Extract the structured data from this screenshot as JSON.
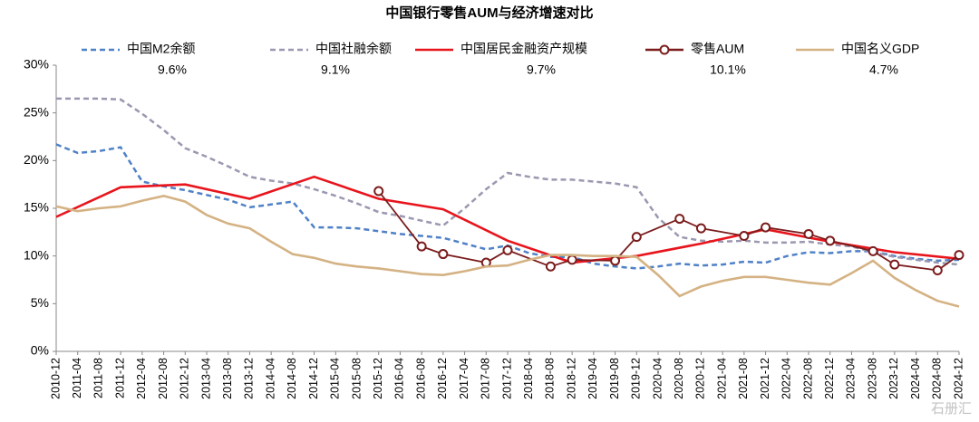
{
  "chart_data": {
    "type": "line",
    "title": "中国银行零售AUM与经济增速对比",
    "watermark": "石册汇",
    "categories": [
      "2010-12",
      "2011-04",
      "2011-08",
      "2011-12",
      "2012-04",
      "2012-08",
      "2012-12",
      "2013-04",
      "2013-08",
      "2013-12",
      "2014-04",
      "2014-08",
      "2014-12",
      "2015-04",
      "2015-08",
      "2015-12",
      "2016-04",
      "2016-08",
      "2016-12",
      "2017-04",
      "2017-08",
      "2017-12",
      "2018-04",
      "2018-08",
      "2018-12",
      "2019-04",
      "2019-08",
      "2019-12",
      "2020-04",
      "2020-08",
      "2020-12",
      "2021-04",
      "2021-08",
      "2021-12",
      "2022-04",
      "2022-08",
      "2022-12",
      "2023-04",
      "2023-08",
      "2023-12",
      "2024-04",
      "2024-08",
      "2024-12"
    ],
    "ylim": [
      0,
      30
    ],
    "yticks": [
      {
        "value": 0,
        "label": "0%"
      },
      {
        "value": 5,
        "label": "5%"
      },
      {
        "value": 10,
        "label": "10%"
      },
      {
        "value": 15,
        "label": "15%"
      },
      {
        "value": 20,
        "label": "20%"
      },
      {
        "value": 25,
        "label": "25%"
      },
      {
        "value": 30,
        "label": "30%"
      }
    ],
    "grid": false,
    "series": [
      {
        "name": "中国M2余额",
        "latest_label": "9.6%",
        "color": "#4f81c7",
        "dashed": true,
        "values": [
          21.7,
          20.8,
          21.0,
          21.4,
          17.8,
          17.3,
          16.9,
          16.4,
          15.9,
          15.1,
          15.4,
          15.7,
          13.0,
          13.0,
          12.9,
          12.6,
          12.3,
          12.1,
          11.9,
          11.3,
          10.7,
          11.1,
          10.3,
          9.9,
          9.9,
          9.2,
          8.9,
          8.7,
          8.9,
          9.2,
          9.0,
          9.1,
          9.4,
          9.3,
          10.0,
          10.4,
          10.3,
          10.5,
          10.5,
          10.0,
          9.7,
          9.5,
          9.6
        ]
      },
      {
        "name": "中国社融余额",
        "latest_label": "9.1%",
        "color": "#9a98b0",
        "dashed": true,
        "values": [
          26.5,
          26.5,
          26.5,
          26.4,
          24.9,
          23.2,
          21.3,
          20.4,
          19.4,
          18.3,
          17.9,
          17.6,
          17.0,
          16.3,
          15.5,
          14.6,
          14.2,
          13.7,
          13.2,
          15.0,
          17.0,
          18.7,
          18.3,
          18.0,
          18.0,
          17.8,
          17.6,
          17.2,
          14.0,
          12.0,
          11.6,
          11.5,
          11.6,
          11.4,
          11.4,
          11.5,
          11.2,
          11.0,
          10.4,
          9.9,
          9.6,
          9.3,
          9.1
        ]
      },
      {
        "name": "中国居民金融资产规模",
        "latest_label": "9.7%",
        "color": "#e8141c",
        "x": [
          "2010-12",
          "2011-12",
          "2012-12",
          "2013-12",
          "2014-12",
          "2015-12",
          "2016-12",
          "2017-12",
          "2018-12",
          "2019-12",
          "2020-12",
          "2021-12",
          "2022-12",
          "2023-12",
          "2024-12"
        ],
        "values": [
          14.1,
          17.2,
          17.5,
          16.0,
          18.3,
          16.0,
          14.9,
          11.6,
          9.3,
          10.0,
          11.3,
          12.8,
          11.5,
          10.4,
          9.7
        ]
      },
      {
        "name": "零售AUM",
        "latest_label": "10.1%",
        "color": "#7b1c1c",
        "markers": true,
        "x": [
          "2015-12",
          "2016-08",
          "2016-12",
          "2017-08",
          "2017-12",
          "2018-08",
          "2018-12",
          "2019-08",
          "2019-12",
          "2020-08",
          "2020-12",
          "2021-08",
          "2021-12",
          "2022-08",
          "2022-12",
          "2023-08",
          "2023-12",
          "2024-08",
          "2024-12"
        ],
        "values": [
          16.8,
          11.0,
          10.2,
          9.3,
          10.6,
          8.9,
          9.6,
          9.5,
          12.0,
          13.9,
          12.9,
          12.1,
          13.0,
          12.3,
          11.6,
          10.5,
          9.1,
          8.5,
          10.1
        ]
      },
      {
        "name": "中国名义GDP",
        "latest_label": "4.7%",
        "color": "#d4b283",
        "values": [
          15.2,
          14.7,
          15.0,
          15.2,
          15.8,
          16.3,
          15.7,
          14.3,
          13.4,
          12.9,
          11.5,
          10.2,
          9.8,
          9.2,
          8.9,
          8.7,
          8.4,
          8.1,
          8.0,
          8.4,
          8.9,
          9.0,
          9.6,
          10.1,
          10.1,
          10.0,
          10.0,
          9.9,
          8.0,
          5.8,
          6.8,
          7.4,
          7.8,
          7.8,
          7.5,
          7.2,
          7.0,
          8.2,
          9.5,
          7.7,
          6.4,
          5.3,
          4.7
        ]
      }
    ]
  }
}
